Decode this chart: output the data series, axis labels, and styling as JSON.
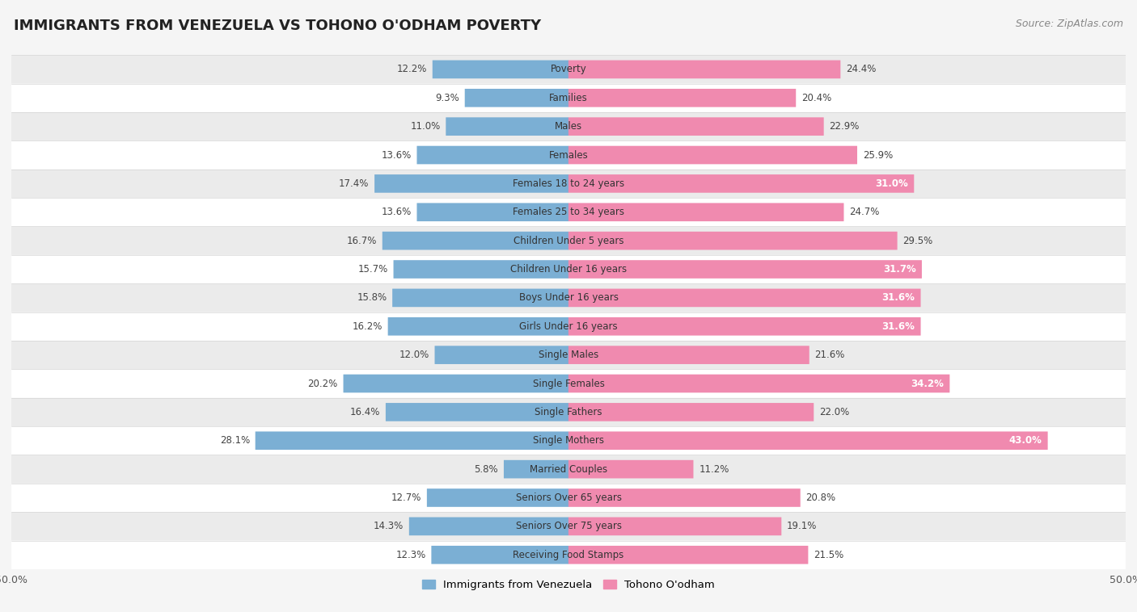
{
  "title": "IMMIGRANTS FROM VENEZUELA VS TOHONO O'ODHAM POVERTY",
  "source": "Source: ZipAtlas.com",
  "categories": [
    "Poverty",
    "Families",
    "Males",
    "Females",
    "Females 18 to 24 years",
    "Females 25 to 34 years",
    "Children Under 5 years",
    "Children Under 16 years",
    "Boys Under 16 years",
    "Girls Under 16 years",
    "Single Males",
    "Single Females",
    "Single Fathers",
    "Single Mothers",
    "Married Couples",
    "Seniors Over 65 years",
    "Seniors Over 75 years",
    "Receiving Food Stamps"
  ],
  "left_values": [
    12.2,
    9.3,
    11.0,
    13.6,
    17.4,
    13.6,
    16.7,
    15.7,
    15.8,
    16.2,
    12.0,
    20.2,
    16.4,
    28.1,
    5.8,
    12.7,
    14.3,
    12.3
  ],
  "right_values": [
    24.4,
    20.4,
    22.9,
    25.9,
    31.0,
    24.7,
    29.5,
    31.7,
    31.6,
    31.6,
    21.6,
    34.2,
    22.0,
    43.0,
    11.2,
    20.8,
    19.1,
    21.5
  ],
  "right_label_inside": [
    31.0,
    31.7,
    31.6,
    31.6,
    34.2,
    43.0
  ],
  "left_color": "#7BAFD4",
  "right_color": "#F08AAF",
  "axis_max": 50.0,
  "axis_label_left": "Immigrants from Venezuela",
  "axis_label_right": "Tohono O'odham",
  "background_color": "#f5f5f5",
  "row_color_odd": "#ffffff",
  "row_color_even": "#ebebeb",
  "title_fontsize": 13,
  "source_fontsize": 9,
  "label_fontsize": 8.5,
  "value_fontsize": 8.5,
  "axis_tick_fontsize": 9
}
